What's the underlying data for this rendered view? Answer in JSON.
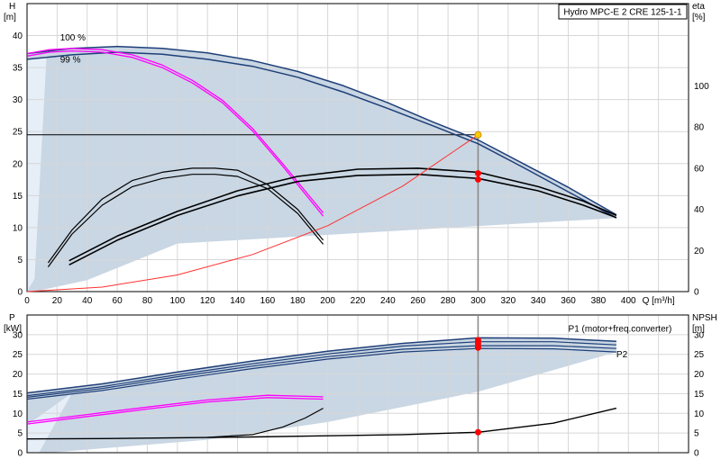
{
  "chart_data": [
    {
      "type": "line",
      "title": "Hydro MPC-E 2 CRE 125-1-1",
      "xlabel": "Q [m³/h]",
      "ylabel_left": [
        "H",
        "[m]"
      ],
      "ylabel_right": [
        "eta",
        "[%]"
      ],
      "xlim": [
        0,
        440
      ],
      "ylim": [
        0,
        45
      ],
      "y2lim": [
        0,
        140
      ],
      "x_ticks": [
        0,
        20,
        40,
        60,
        80,
        100,
        120,
        140,
        160,
        180,
        200,
        220,
        240,
        260,
        280,
        300,
        320,
        340,
        360,
        380,
        400
      ],
      "y_ticks": [
        0,
        5,
        10,
        15,
        20,
        25,
        30,
        35,
        40
      ],
      "y2_ticks": [
        0,
        20,
        40,
        60,
        80,
        100
      ],
      "grid": true,
      "labels": [
        {
          "text": "100 %",
          "x": 22,
          "y": 39.2
        },
        {
          "text": "99 %",
          "x": 22,
          "y": 35.8
        }
      ],
      "duty_point": {
        "x": 300,
        "y": 24.5
      },
      "series": [
        {
          "axis": "left",
          "color": "#1e3f78",
          "width": 1.5,
          "x": [
            0,
            30,
            60,
            90,
            120,
            150,
            180,
            210,
            240,
            270,
            300,
            330,
            360,
            392
          ],
          "values": [
            37.2,
            38.0,
            38.3,
            38.0,
            37.3,
            36.1,
            34.4,
            32.2,
            29.5,
            26.5,
            23.7,
            20.0,
            16.3,
            12.0
          ]
        },
        {
          "axis": "left",
          "color": "#1e3f78",
          "width": 1.5,
          "x": [
            0,
            30,
            60,
            90,
            120,
            150,
            180,
            210,
            240,
            270,
            300,
            330,
            360,
            392
          ],
          "values": [
            36.3,
            37.0,
            37.4,
            37.1,
            36.3,
            35.2,
            33.5,
            31.2,
            28.6,
            25.9,
            23.1,
            19.4,
            15.6,
            11.5
          ]
        },
        {
          "axis": "left",
          "color": "#ff00ff",
          "width": 1.3,
          "x": [
            0,
            15,
            30,
            50,
            70,
            90,
            110,
            130,
            150,
            170,
            197
          ],
          "values": [
            37.2,
            37.8,
            38.0,
            37.8,
            37.0,
            35.4,
            33.0,
            29.9,
            25.5,
            20.0,
            12.3
          ]
        },
        {
          "axis": "left",
          "color": "#ff00ff",
          "width": 1.3,
          "x": [
            0,
            15,
            30,
            50,
            70,
            90,
            110,
            130,
            150,
            170,
            197
          ],
          "values": [
            36.8,
            37.4,
            37.6,
            37.4,
            36.6,
            35.0,
            32.6,
            29.5,
            25.1,
            19.6,
            11.8
          ]
        },
        {
          "axis": "right",
          "color": "#000000",
          "width": 1.2,
          "x": [
            14,
            30,
            50,
            70,
            90,
            110,
            125,
            140,
            160,
            180,
            197
          ],
          "values": [
            14,
            30,
            45,
            54,
            58,
            60,
            60,
            59,
            52,
            40,
            25
          ]
        },
        {
          "axis": "right",
          "color": "#000000",
          "width": 1.2,
          "x": [
            14,
            30,
            50,
            70,
            90,
            110,
            125,
            140,
            160,
            180,
            197
          ],
          "values": [
            12,
            28,
            42,
            51,
            55,
            57,
            57,
            56,
            50,
            38,
            23
          ]
        },
        {
          "axis": "right",
          "color": "#000000",
          "width": 1.6,
          "x": [
            28,
            60,
            100,
            140,
            180,
            220,
            260,
            300,
            340,
            370,
            392
          ],
          "values": [
            15,
            27,
            39,
            49,
            56,
            59.5,
            60,
            58,
            51,
            44,
            37
          ]
        },
        {
          "axis": "right",
          "color": "#000000",
          "width": 1.6,
          "x": [
            28,
            60,
            100,
            140,
            180,
            220,
            260,
            300,
            340,
            370,
            392
          ],
          "values": [
            13,
            25,
            37,
            46.5,
            53.5,
            56.5,
            57,
            55,
            49,
            42,
            36
          ]
        },
        {
          "axis": "left",
          "color": "#ff3030",
          "width": 1.0,
          "x": [
            0,
            50,
            100,
            150,
            200,
            250,
            300
          ],
          "values": [
            0,
            0.7,
            2.6,
            5.8,
            10.3,
            16.5,
            24.5
          ]
        }
      ],
      "markers": [
        {
          "axis": "right",
          "x": 300,
          "value": 57.5,
          "color": "#ff0000"
        },
        {
          "axis": "right",
          "x": 300,
          "value": 54.5,
          "color": "#ff0000"
        }
      ]
    },
    {
      "type": "line",
      "xlabel": "",
      "ylabel_left": [
        "P",
        "[kW]"
      ],
      "ylabel_right": [
        "NPSH",
        "[m]"
      ],
      "xlim": [
        0,
        440
      ],
      "ylim": [
        0,
        35
      ],
      "y2lim": [
        0,
        35
      ],
      "y_ticks": [
        0,
        5,
        10,
        15,
        20,
        25,
        30
      ],
      "y2_ticks": [
        0,
        5,
        10,
        15,
        20,
        25,
        30
      ],
      "grid": true,
      "labels": [
        {
          "text": "P1 (motor+freq.converter)",
          "x": 360,
          "y": 30.8
        },
        {
          "text": "P2",
          "x": 392,
          "y": 24.3
        }
      ],
      "series": [
        {
          "axis": "left",
          "color": "#1e3f78",
          "width": 1.5,
          "x": [
            0,
            50,
            100,
            150,
            200,
            250,
            300,
            350,
            392
          ],
          "values": [
            15.2,
            17.5,
            20.5,
            23.3,
            25.8,
            27.8,
            29.2,
            29.1,
            28.3
          ]
        },
        {
          "axis": "left",
          "color": "#1e3f78",
          "width": 1.2,
          "x": [
            0,
            50,
            100,
            150,
            200,
            250,
            300,
            350,
            392
          ],
          "values": [
            14.5,
            16.8,
            19.8,
            22.6,
            25.1,
            27.1,
            28.2,
            28.2,
            27.4
          ]
        },
        {
          "axis": "left",
          "color": "#1e3f78",
          "width": 1.2,
          "x": [
            0,
            50,
            100,
            150,
            200,
            250,
            300,
            350,
            392
          ],
          "values": [
            14.1,
            16.3,
            19.3,
            22.0,
            24.4,
            26.3,
            27.2,
            27.2,
            26.5
          ]
        },
        {
          "axis": "left",
          "color": "#1e3f78",
          "width": 1.2,
          "x": [
            0,
            50,
            100,
            150,
            200,
            250,
            300,
            350,
            392
          ],
          "values": [
            13.6,
            15.8,
            18.7,
            21.4,
            23.8,
            25.6,
            26.5,
            26.4,
            25.6
          ]
        },
        {
          "axis": "left",
          "color": "#ff00ff",
          "width": 1.3,
          "x": [
            0,
            40,
            80,
            120,
            160,
            197
          ],
          "values": [
            7.8,
            9.7,
            11.6,
            13.4,
            14.6,
            14.2
          ]
        },
        {
          "axis": "left",
          "color": "#ff00ff",
          "width": 1.3,
          "x": [
            0,
            40,
            80,
            120,
            160,
            197
          ],
          "values": [
            7.3,
            9.2,
            11.1,
            12.9,
            14.0,
            13.6
          ]
        },
        {
          "axis": "right",
          "color": "#000000",
          "width": 1.4,
          "x": [
            0,
            50,
            100,
            150,
            200,
            250,
            300,
            350,
            392
          ],
          "values": [
            3.5,
            3.6,
            3.8,
            4.0,
            4.3,
            4.6,
            5.2,
            7.5,
            11.3
          ]
        },
        {
          "axis": "right",
          "color": "#000000",
          "width": 1.2,
          "x": [
            120,
            150,
            170,
            185,
            197
          ],
          "values": [
            3.9,
            4.6,
            6.5,
            8.8,
            11.3
          ]
        }
      ],
      "markers": [
        {
          "axis": "left",
          "x": 300,
          "value": 28.6,
          "color": "#ff0000"
        },
        {
          "axis": "left",
          "x": 300,
          "value": 27.7,
          "color": "#ff0000"
        },
        {
          "axis": "left",
          "x": 300,
          "value": 26.7,
          "color": "#ff0000"
        },
        {
          "axis": "right",
          "x": 300,
          "value": 5.2,
          "color": "#ff0000"
        }
      ]
    }
  ]
}
